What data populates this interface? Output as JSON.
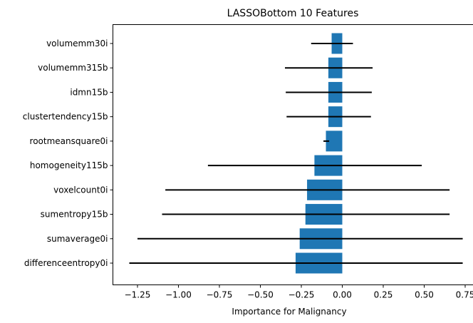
{
  "chart_data": {
    "type": "bar",
    "orientation": "horizontal",
    "title": "LASSOBottom 10 Features",
    "xlabel": "Importance for Malignancy",
    "ylabel": "",
    "xlim": [
      -1.4,
      0.8
    ],
    "xticks": [
      -1.25,
      -1.0,
      -0.75,
      -0.5,
      -0.25,
      0.0,
      0.25,
      0.5,
      0.75
    ],
    "xtick_labels": [
      "−1.25",
      "−1.00",
      "−0.75",
      "−0.50",
      "−0.25",
      "0.00",
      "0.25",
      "0.50",
      "0.75"
    ],
    "categories": [
      "volumemm30i",
      "volumemm315b",
      "idmn15b",
      "clustertendency15b",
      "rootmeansquare0i",
      "homogeneity115b",
      "voxelcount0i",
      "sumentropy15b",
      "sumaverage0i",
      "differenceentropy0i"
    ],
    "values": [
      -0.065,
      -0.085,
      -0.085,
      -0.085,
      -0.1,
      -0.17,
      -0.215,
      -0.225,
      -0.26,
      -0.285
    ],
    "error_low": [
      -0.19,
      -0.35,
      -0.345,
      -0.34,
      -0.115,
      -0.82,
      -1.08,
      -1.1,
      -1.25,
      -1.3
    ],
    "error_high": [
      0.065,
      0.185,
      0.18,
      0.175,
      -0.08,
      0.485,
      0.655,
      0.655,
      0.735,
      0.735
    ],
    "bar_color": "#1f77b4",
    "error_color": "#000000",
    "grid": false,
    "legend": "none"
  }
}
